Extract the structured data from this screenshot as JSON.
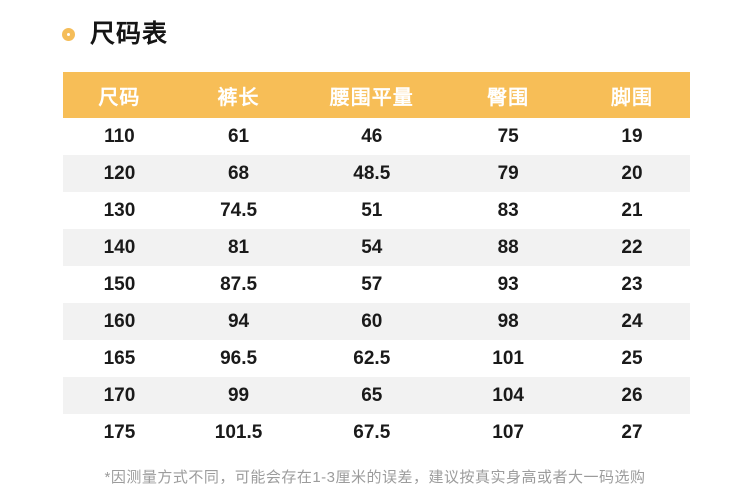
{
  "page": {
    "title": "尺码表",
    "footnote": "*因测量方式不同，可能会存在1-3厘米的误差，建议按真实身高或者大一码选购"
  },
  "colors": {
    "accent_orange": "#F7BE57",
    "ring_orange": "#F5BD59",
    "row_alt_gray": "#F2F2F2",
    "body_text": "#1A1A1A",
    "footnote_gray": "#9C9C9C"
  },
  "icons": {
    "title_bullet": "ring-icon"
  },
  "chart_data": {
    "type": "table",
    "title": "尺码表",
    "columns": [
      "尺码",
      "裤长",
      "腰围平量",
      "臀围",
      "脚围"
    ],
    "rows": [
      [
        "110",
        "61",
        "46",
        "75",
        "19"
      ],
      [
        "120",
        "68",
        "48.5",
        "79",
        "20"
      ],
      [
        "130",
        "74.5",
        "51",
        "83",
        "21"
      ],
      [
        "140",
        "81",
        "54",
        "88",
        "22"
      ],
      [
        "150",
        "87.5",
        "57",
        "93",
        "23"
      ],
      [
        "160",
        "94",
        "60",
        "98",
        "24"
      ],
      [
        "165",
        "96.5",
        "62.5",
        "101",
        "25"
      ],
      [
        "170",
        "99",
        "65",
        "104",
        "26"
      ],
      [
        "175",
        "101.5",
        "67.5",
        "107",
        "27"
      ]
    ]
  }
}
